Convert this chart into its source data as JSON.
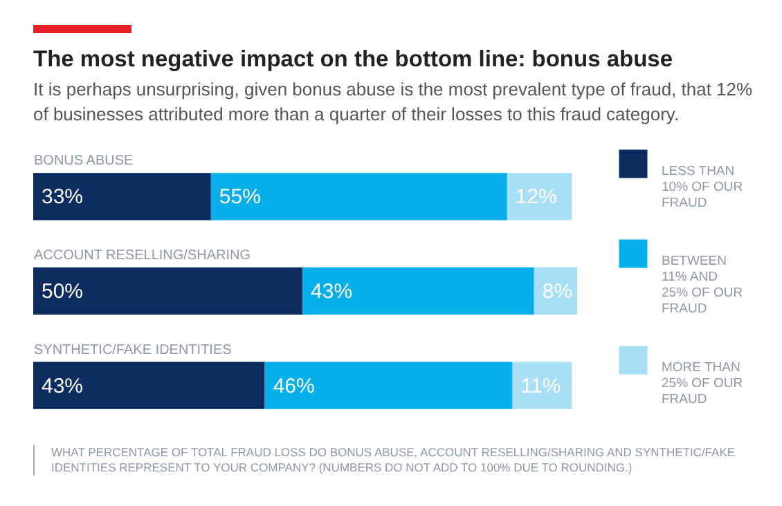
{
  "chart_data": {
    "type": "bar",
    "title": "The most negative impact on the bottom line: bonus abuse",
    "subtitle": "It is perhaps unsurprising, given bonus abuse is the most prevalent type of fraud, that 12% of businesses attributed more than a quarter of their losses to this fraud category.",
    "categories": [
      "BONUS ABUSE",
      "ACCOUNT RESELLING/SHARING",
      "SYNTHETIC/FAKE IDENTITIES"
    ],
    "orientation": "horizontal",
    "stacked": true,
    "legend": "right",
    "grid": false,
    "series": [
      {
        "name": "LESS THAN 10% OF OUR FRAUD",
        "color": "#0c2b5e",
        "values": [
          33,
          50,
          43
        ],
        "value_labels": [
          "33%",
          "50%",
          "43%"
        ]
      },
      {
        "name": "BETWEEN 11% AND 25% OF OUR FRAUD",
        "color": "#06aeea",
        "values": [
          55,
          43,
          46
        ],
        "value_labels": [
          "55%",
          "43%",
          "46%"
        ]
      },
      {
        "name": "MORE THAN 25% OF OUR FRAUD",
        "color": "#a9def7",
        "values": [
          12,
          8,
          11
        ],
        "value_labels": [
          "12%",
          "8%",
          "11%"
        ]
      }
    ],
    "annotations": [
      "WHAT PERCENTAGE OF TOTAL FRAUD LOSS DO BONUS ABUSE, ACCOUNT RESELLING/SHARING AND SYNTHETIC/FAKE IDENTITIES REPRESENT TO YOUR COMPANY? (NUMBERS DO NOT ADD TO 100% DUE TO ROUNDING.)"
    ]
  }
}
